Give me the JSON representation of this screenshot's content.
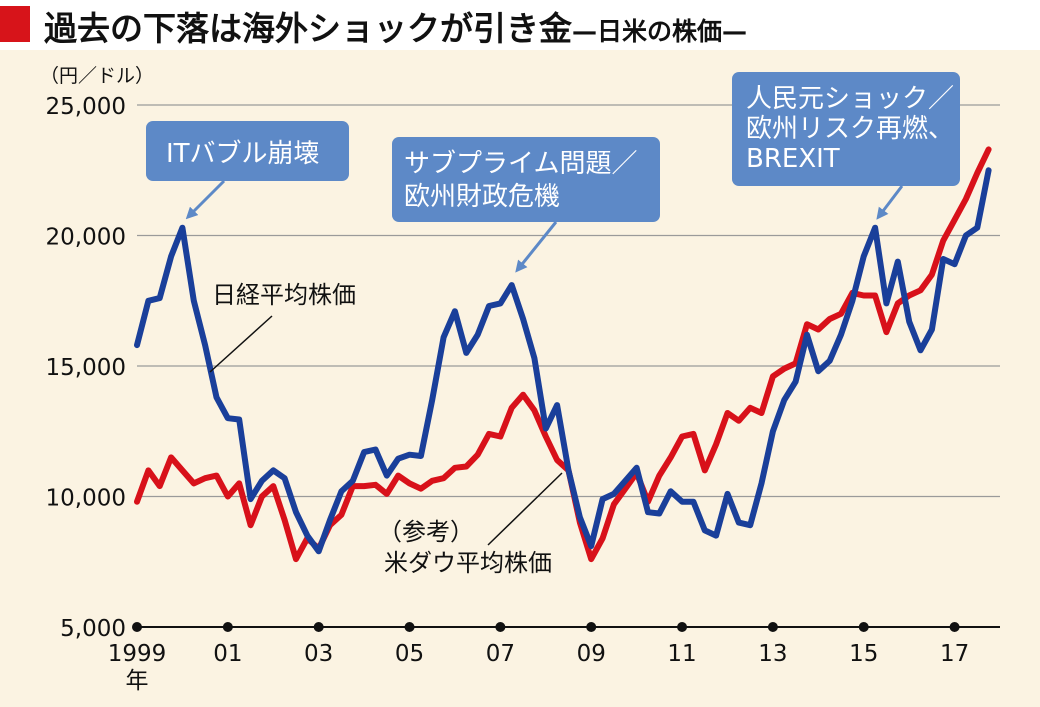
{
  "title": "過去の下落は海外ショックが引き金",
  "subtitle": "—日米の株価—",
  "chart_data": {
    "type": "line",
    "ylabel": "（円／ドル）",
    "ylim": [
      5000,
      25000
    ],
    "yticks": [
      {
        "value": 25000,
        "label": "25,000"
      },
      {
        "value": 20000,
        "label": "20,000"
      },
      {
        "value": 15000,
        "label": "15,000"
      },
      {
        "value": 10000,
        "label": "10,000"
      },
      {
        "value": 5000,
        "label": "5,000"
      }
    ],
    "xlim": [
      1999.0,
      2018.0
    ],
    "xticks": [
      {
        "value": 1999,
        "label": "1999"
      },
      {
        "value": 2001,
        "label": "01"
      },
      {
        "value": 2003,
        "label": "03"
      },
      {
        "value": 2005,
        "label": "05"
      },
      {
        "value": 2007,
        "label": "07"
      },
      {
        "value": 2009,
        "label": "09"
      },
      {
        "value": 2011,
        "label": "11"
      },
      {
        "value": 2013,
        "label": "13"
      },
      {
        "value": 2015,
        "label": "15"
      },
      {
        "value": 2017,
        "label": "17"
      }
    ],
    "xunit": "年",
    "grid": true,
    "series": [
      {
        "name": "日経平均株価",
        "color": "#1a3f9a",
        "x": [
          1999.0,
          1999.25,
          1999.5,
          1999.75,
          2000.0,
          2000.25,
          2000.5,
          2000.75,
          2001.0,
          2001.25,
          2001.5,
          2001.75,
          2002.0,
          2002.25,
          2002.5,
          2002.75,
          2003.0,
          2003.25,
          2003.5,
          2003.75,
          2004.0,
          2004.25,
          2004.5,
          2004.75,
          2005.0,
          2005.25,
          2005.5,
          2005.75,
          2006.0,
          2006.25,
          2006.5,
          2006.75,
          2007.0,
          2007.25,
          2007.5,
          2007.75,
          2008.0,
          2008.25,
          2008.5,
          2008.75,
          2009.0,
          2009.25,
          2009.5,
          2009.75,
          2010.0,
          2010.25,
          2010.5,
          2010.75,
          2011.0,
          2011.25,
          2011.5,
          2011.75,
          2012.0,
          2012.25,
          2012.5,
          2012.75,
          2013.0,
          2013.25,
          2013.5,
          2013.75,
          2014.0,
          2014.25,
          2014.5,
          2014.75,
          2015.0,
          2015.25,
          2015.5,
          2015.75,
          2016.0,
          2016.25,
          2016.5,
          2016.75,
          2017.0,
          2017.25,
          2017.5,
          2017.75
        ],
        "values": [
          15800,
          17500,
          17600,
          19200,
          20300,
          17500,
          15800,
          13800,
          13000,
          12950,
          9900,
          10600,
          11000,
          10700,
          9400,
          8500,
          7900,
          9100,
          10200,
          10600,
          11700,
          11800,
          10800,
          11450,
          11600,
          11550,
          13700,
          16100,
          17100,
          15500,
          16200,
          17300,
          17400,
          18100,
          16800,
          15300,
          12600,
          13500,
          11000,
          9200,
          8100,
          9900,
          10100,
          10600,
          11100,
          9400,
          9350,
          10200,
          9800,
          9800,
          8700,
          8500,
          10100,
          9000,
          8900,
          10500,
          12500,
          13700,
          14400,
          16200,
          14800,
          15200,
          16200,
          17500,
          19200,
          20300,
          17400,
          19000,
          16700,
          15600,
          16400,
          19100,
          18900,
          20000,
          20300,
          22500
        ]
      },
      {
        "name": "（参考）米ダウ平均株価",
        "color": "#d8111a",
        "x": [
          1999.0,
          1999.25,
          1999.5,
          1999.75,
          2000.0,
          2000.25,
          2000.5,
          2000.75,
          2001.0,
          2001.25,
          2001.5,
          2001.75,
          2002.0,
          2002.25,
          2002.5,
          2002.75,
          2003.0,
          2003.25,
          2003.5,
          2003.75,
          2004.0,
          2004.25,
          2004.5,
          2004.75,
          2005.0,
          2005.25,
          2005.5,
          2005.75,
          2006.0,
          2006.25,
          2006.5,
          2006.75,
          2007.0,
          2007.25,
          2007.5,
          2007.75,
          2008.0,
          2008.25,
          2008.5,
          2008.75,
          2009.0,
          2009.25,
          2009.5,
          2009.75,
          2010.0,
          2010.25,
          2010.5,
          2010.75,
          2011.0,
          2011.25,
          2011.5,
          2011.75,
          2012.0,
          2012.25,
          2012.5,
          2012.75,
          2013.0,
          2013.25,
          2013.5,
          2013.75,
          2014.0,
          2014.25,
          2014.5,
          2014.75,
          2015.0,
          2015.25,
          2015.5,
          2015.75,
          2016.0,
          2016.25,
          2016.5,
          2016.75,
          2017.0,
          2017.25,
          2017.5,
          2017.75
        ],
        "values": [
          9800,
          11000,
          10400,
          11500,
          11000,
          10500,
          10700,
          10800,
          10000,
          10500,
          8900,
          10000,
          10400,
          9100,
          7600,
          8400,
          8000,
          8900,
          9300,
          10400,
          10400,
          10450,
          10100,
          10800,
          10500,
          10300,
          10600,
          10700,
          11100,
          11150,
          11600,
          12400,
          12300,
          13400,
          13900,
          13300,
          12300,
          11400,
          11000,
          9000,
          7600,
          8400,
          9700,
          10300,
          10900,
          9800,
          10800,
          11500,
          12300,
          12400,
          11000,
          12000,
          13200,
          12900,
          13400,
          13200,
          14600,
          14900,
          15100,
          16600,
          16400,
          16800,
          17000,
          17800,
          17700,
          17700,
          16300,
          17400,
          17700,
          17900,
          18500,
          19800,
          20600,
          21400,
          22400,
          23300
        ]
      }
    ],
    "annotations": [
      {
        "lines": [
          "ITバブル崩壊"
        ]
      },
      {
        "lines": [
          "サブプライム問題／",
          "欧州財政危機"
        ]
      },
      {
        "lines": [
          "人民元ショック／",
          "欧州リスク再燃、",
          "BREXIT"
        ]
      }
    ]
  },
  "colors": {
    "title_mark": "#d7141a",
    "plot_background": "#fbf3e2",
    "callout_fill": "#5d89c7",
    "callout_text": "#ffffff",
    "grid": "#9a9a9a"
  }
}
